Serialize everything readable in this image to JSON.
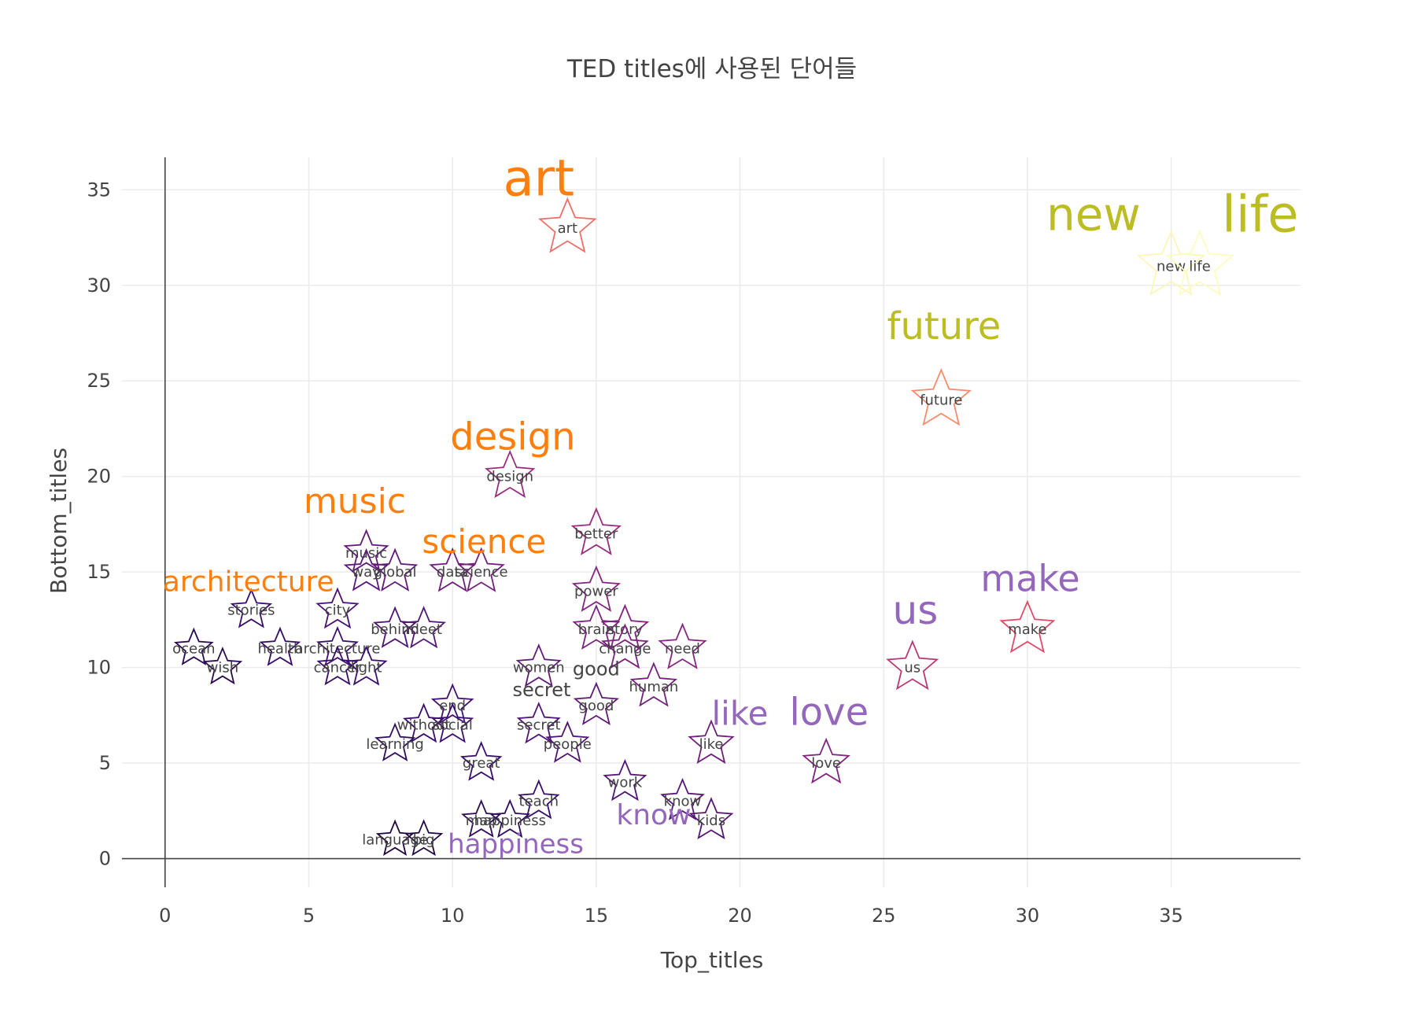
{
  "chart_data": {
    "type": "scatter",
    "title": "TED titles에 사용된 단어들",
    "xlabel": "Top_titles",
    "ylabel": "Bottom_titles",
    "xlim": [
      -1.5,
      39.5
    ],
    "ylim": [
      -1.5,
      36.7
    ],
    "x_ticks": [
      0,
      5,
      10,
      15,
      20,
      25,
      30,
      35
    ],
    "y_ticks": [
      0,
      5,
      10,
      15,
      20,
      25,
      30,
      35
    ],
    "grid": true,
    "marker_symbol": "star-open",
    "colors": {
      "axis_top_words": "#bcbd22",
      "axis_bottom_words": "#ff7f0e",
      "axis_middle_words": "#9467bd",
      "marker_low": "#000004",
      "marker_mid": "#b63679",
      "marker_high": "#fcfdbf"
    },
    "points": [
      {
        "word": "art",
        "x": 14,
        "y": 33
      },
      {
        "word": "new",
        "x": 35,
        "y": 31
      },
      {
        "word": "life",
        "x": 36,
        "y": 31
      },
      {
        "word": "future",
        "x": 27,
        "y": 24
      },
      {
        "word": "design",
        "x": 12,
        "y": 20
      },
      {
        "word": "better",
        "x": 15,
        "y": 17
      },
      {
        "word": "music",
        "x": 7,
        "y": 16
      },
      {
        "word": "data",
        "x": 10,
        "y": 15
      },
      {
        "word": "science",
        "x": 11,
        "y": 15
      },
      {
        "word": "way",
        "x": 7,
        "y": 15
      },
      {
        "word": "global",
        "x": 8,
        "y": 15
      },
      {
        "word": "stories",
        "x": 3,
        "y": 13
      },
      {
        "word": "city",
        "x": 6,
        "y": 13
      },
      {
        "word": "power",
        "x": 15,
        "y": 14
      },
      {
        "word": "brain",
        "x": 15,
        "y": 12
      },
      {
        "word": "story",
        "x": 16,
        "y": 12
      },
      {
        "word": "behind",
        "x": 8,
        "y": 12
      },
      {
        "word": "meet",
        "x": 9,
        "y": 12
      },
      {
        "word": "make",
        "x": 30,
        "y": 12
      },
      {
        "word": "change",
        "x": 16,
        "y": 11
      },
      {
        "word": "need",
        "x": 18,
        "y": 11
      },
      {
        "word": "ocean",
        "x": 1,
        "y": 11
      },
      {
        "word": "health",
        "x": 4,
        "y": 11
      },
      {
        "word": "architecture",
        "x": 6,
        "y": 11
      },
      {
        "word": "us",
        "x": 26,
        "y": 10
      },
      {
        "word": "women",
        "x": 13,
        "y": 10
      },
      {
        "word": "cancer",
        "x": 6,
        "y": 10
      },
      {
        "word": "light",
        "x": 7,
        "y": 10
      },
      {
        "word": "wish",
        "x": 2,
        "y": 10
      },
      {
        "word": "human",
        "x": 17,
        "y": 9
      },
      {
        "word": "good",
        "x": 15,
        "y": 8
      },
      {
        "word": "end",
        "x": 10,
        "y": 8
      },
      {
        "word": "secret",
        "x": 13,
        "y": 7
      },
      {
        "word": "without",
        "x": 9,
        "y": 7
      },
      {
        "word": "social",
        "x": 10,
        "y": 7
      },
      {
        "word": "like",
        "x": 19,
        "y": 6
      },
      {
        "word": "people",
        "x": 14,
        "y": 6
      },
      {
        "word": "learning",
        "x": 8,
        "y": 6
      },
      {
        "word": "love",
        "x": 23,
        "y": 5
      },
      {
        "word": "great",
        "x": 11,
        "y": 5
      },
      {
        "word": "work",
        "x": 16,
        "y": 4
      },
      {
        "word": "know",
        "x": 18,
        "y": 3
      },
      {
        "word": "teach",
        "x": 13,
        "y": 3
      },
      {
        "word": "kids",
        "x": 19,
        "y": 2
      },
      {
        "word": "happiness",
        "x": 12,
        "y": 2
      },
      {
        "word": "map",
        "x": 11,
        "y": 2
      },
      {
        "word": "big",
        "x": 9,
        "y": 1
      },
      {
        "word": "language",
        "x": 8,
        "y": 1
      }
    ],
    "annotations": [
      {
        "text": "art",
        "x": 13.0,
        "y": 34.7,
        "size": 64,
        "color": "#ff7f0e"
      },
      {
        "text": "new",
        "x": 32.3,
        "y": 32.9,
        "size": 58,
        "color": "#bcbd22"
      },
      {
        "text": "life",
        "x": 38.1,
        "y": 32.8,
        "size": 64,
        "color": "#bcbd22"
      },
      {
        "text": "future",
        "x": 27.1,
        "y": 27.2,
        "size": 48,
        "color": "#bcbd22"
      },
      {
        "text": "design",
        "x": 12.1,
        "y": 21.4,
        "size": 48,
        "color": "#ff7f0e"
      },
      {
        "text": "music",
        "x": 6.6,
        "y": 18.1,
        "size": 44,
        "color": "#ff7f0e"
      },
      {
        "text": "science",
        "x": 11.1,
        "y": 16.0,
        "size": 42,
        "color": "#ff7f0e"
      },
      {
        "text": "architecture",
        "x": 2.9,
        "y": 14.0,
        "size": 36,
        "color": "#ff7f0e"
      },
      {
        "text": "make",
        "x": 30.1,
        "y": 14.0,
        "size": 46,
        "color": "#9467bd"
      },
      {
        "text": "us",
        "x": 26.1,
        "y": 12.3,
        "size": 50,
        "color": "#9467bd"
      },
      {
        "text": "like",
        "x": 20.0,
        "y": 7.0,
        "size": 42,
        "color": "#9467bd"
      },
      {
        "text": "love",
        "x": 23.1,
        "y": 7.0,
        "size": 48,
        "color": "#9467bd"
      },
      {
        "text": "know",
        "x": 17.0,
        "y": 1.8,
        "size": 36,
        "color": "#9467bd"
      },
      {
        "text": "happiness",
        "x": 12.2,
        "y": 0.3,
        "size": 34,
        "color": "#9467bd"
      },
      {
        "text": "good",
        "x": 15.0,
        "y": 9.6,
        "size": 24,
        "color": "#444444"
      },
      {
        "text": "secret",
        "x": 13.1,
        "y": 8.5,
        "size": 24,
        "color": "#444444"
      }
    ]
  }
}
